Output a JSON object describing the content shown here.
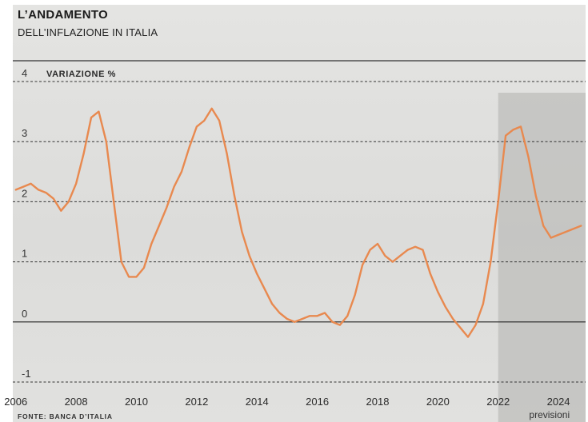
{
  "header": {
    "title": "L’ANDAMENTO",
    "subtitle": "DELL’INFLAZIONE IN ITALIA"
  },
  "source": "FONTE: BANCA D’ITALIA",
  "colors": {
    "line": "#e8894f",
    "background": "#dededc",
    "forecast_band": "#bdbdbb",
    "gridline": "#333333"
  },
  "chart_data": {
    "type": "line",
    "ylabel": "VARIAZIONE %",
    "ylim": [
      -1,
      4
    ],
    "yticks": [
      4,
      3,
      2,
      1,
      0,
      -1
    ],
    "xlim": [
      2005.9,
      2024.9
    ],
    "xticks": [
      2006,
      2008,
      2010,
      2012,
      2014,
      2016,
      2018,
      2020,
      2022,
      2024
    ],
    "grid": "horizontal dashed",
    "forecast": {
      "from": 2022.0,
      "to": 2024.9,
      "label": "previsioni"
    },
    "series": [
      {
        "x": [
          2006.0,
          2006.25,
          2006.5,
          2006.75,
          2007.0,
          2007.25,
          2007.5,
          2007.75,
          2008.0,
          2008.25,
          2008.5,
          2008.75,
          2009.0,
          2009.25,
          2009.5,
          2009.75,
          2010.0,
          2010.25,
          2010.5,
          2010.75,
          2011.0,
          2011.25,
          2011.5,
          2011.75,
          2012.0,
          2012.25,
          2012.5,
          2012.75,
          2013.0,
          2013.25,
          2013.5,
          2013.75,
          2014.0,
          2014.25,
          2014.5,
          2014.75,
          2015.0,
          2015.25,
          2015.5,
          2015.75,
          2016.0,
          2016.25,
          2016.5,
          2016.75,
          2017.0,
          2017.25,
          2017.5,
          2017.75,
          2018.0,
          2018.25,
          2018.5,
          2018.75,
          2019.0,
          2019.25,
          2019.5,
          2019.75,
          2020.0,
          2020.25,
          2020.5,
          2020.75,
          2021.0,
          2021.25,
          2021.5,
          2021.75,
          2022.0,
          2022.25,
          2022.5,
          2022.75,
          2023.0,
          2023.25,
          2023.5,
          2023.75,
          2024.0,
          2024.25,
          2024.5,
          2024.75
        ],
        "values": [
          2.2,
          2.25,
          2.3,
          2.2,
          2.15,
          2.05,
          1.85,
          2.0,
          2.3,
          2.8,
          3.4,
          3.5,
          3.0,
          2.0,
          1.0,
          0.75,
          0.75,
          0.9,
          1.3,
          1.6,
          1.9,
          2.25,
          2.5,
          2.9,
          3.25,
          3.35,
          3.55,
          3.35,
          2.8,
          2.1,
          1.5,
          1.1,
          0.8,
          0.55,
          0.3,
          0.15,
          0.05,
          0.0,
          0.05,
          0.1,
          0.1,
          0.15,
          0.0,
          -0.05,
          0.1,
          0.45,
          0.95,
          1.2,
          1.3,
          1.1,
          1.0,
          1.1,
          1.2,
          1.25,
          1.2,
          0.8,
          0.5,
          0.25,
          0.05,
          -0.1,
          -0.25,
          -0.05,
          0.3,
          1.0,
          2.0,
          3.1,
          3.2,
          3.25,
          2.75,
          2.1,
          1.6,
          1.4,
          1.45,
          1.5,
          1.55,
          1.6
        ]
      }
    ]
  }
}
